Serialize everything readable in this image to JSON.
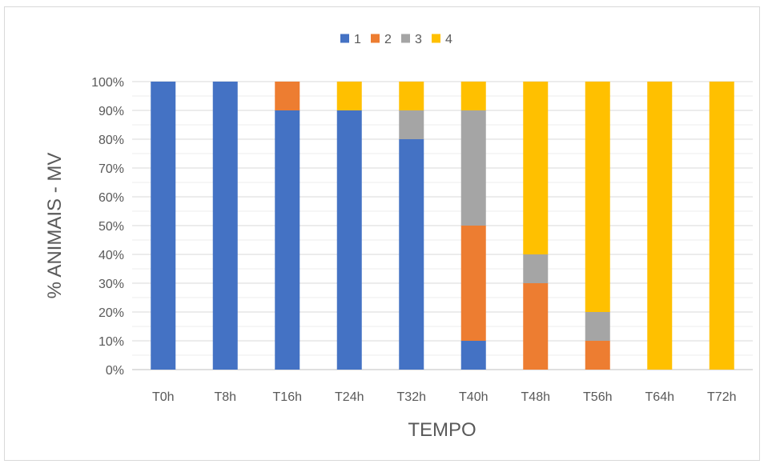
{
  "chart_data": {
    "type": "bar",
    "stacked": true,
    "percent_stacked": true,
    "title": "",
    "xlabel": "TEMPO",
    "ylabel": "% ANIMAIS - MV",
    "ylim": [
      0,
      100
    ],
    "yticks": [
      "0%",
      "10%",
      "20%",
      "30%",
      "40%",
      "50%",
      "60%",
      "70%",
      "80%",
      "90%",
      "100%"
    ],
    "categories": [
      "T0h",
      "T8h",
      "T16h",
      "T24h",
      "T32h",
      "T40h",
      "T48h",
      "T56h",
      "T64h",
      "T72h"
    ],
    "legend_position": "top",
    "grid": true,
    "series": [
      {
        "name": "1",
        "color": "#4472c4",
        "values": [
          100,
          100,
          90,
          90,
          80,
          10,
          0,
          0,
          0,
          0
        ]
      },
      {
        "name": "2",
        "color": "#ed7d31",
        "values": [
          0,
          0,
          10,
          0,
          0,
          40,
          30,
          10,
          0,
          0
        ]
      },
      {
        "name": "3",
        "color": "#a5a5a5",
        "values": [
          0,
          0,
          0,
          0,
          10,
          40,
          10,
          10,
          0,
          0
        ]
      },
      {
        "name": "4",
        "color": "#ffc000",
        "values": [
          0,
          0,
          0,
          10,
          10,
          10,
          60,
          80,
          100,
          100
        ]
      }
    ]
  }
}
